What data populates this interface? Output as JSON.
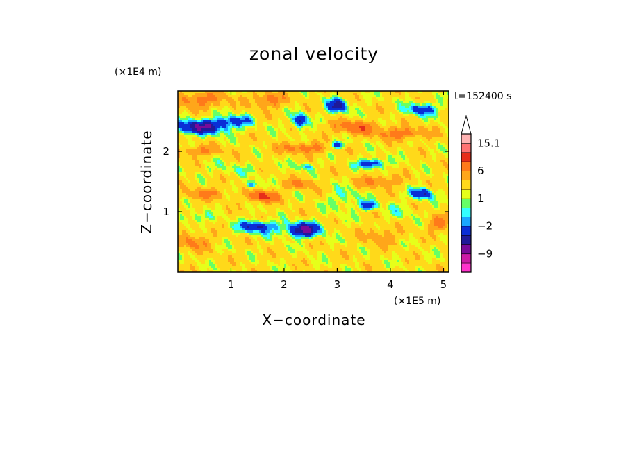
{
  "chart_data": {
    "type": "heatmap",
    "title": "zonal velocity",
    "xlabel": "X−coordinate",
    "ylabel": "Z−coordinate",
    "x_unit": "(×1E5 m)",
    "y_unit": "(×1E4 m)",
    "time_label": "t=152400 s",
    "xlim": [
      0,
      5.1
    ],
    "ylim": [
      0,
      3.0
    ],
    "x_ticks": [
      1,
      2,
      3,
      4,
      5
    ],
    "x_tick_labels": [
      "1",
      "2",
      "3",
      "4",
      "5"
    ],
    "y_ticks": [
      1,
      2
    ],
    "y_tick_labels": [
      "1",
      "2"
    ],
    "grid": false,
    "colorbar": {
      "levels": [
        -15,
        -12,
        -9,
        -6,
        -4,
        -2,
        -1,
        0,
        1,
        2,
        4,
        6,
        9,
        12,
        15.1
      ],
      "colors": [
        "#ff33cc",
        "#cc1aa6",
        "#7a0a99",
        "#1f1a99",
        "#0a2ed6",
        "#1aa6ff",
        "#33ffff",
        "#66ff66",
        "#e6ff1a",
        "#ffd91a",
        "#ffa61a",
        "#ff7a1a",
        "#e62e1a",
        "#ff7373",
        "#ffb3b3"
      ],
      "labels": [
        {
          "value": 15.1,
          "text": "15.1"
        },
        {
          "value": 6,
          "text": "6"
        },
        {
          "value": 1,
          "text": "1"
        },
        {
          "value": -2,
          "text": "−2"
        },
        {
          "value": -9,
          "text": "−9"
        }
      ],
      "extend": "max",
      "extend_color": "#ffffff"
    },
    "field": {
      "description_units": "velocity (m/s), sampled features",
      "background": 2.5,
      "features": [
        {
          "x": 0.4,
          "z": 2.4,
          "sx": 0.55,
          "sz": 0.12,
          "amp": -8
        },
        {
          "x": 1.05,
          "z": 2.5,
          "sx": 0.35,
          "sz": 0.1,
          "amp": -5
        },
        {
          "x": 1.5,
          "z": 0.75,
          "sx": 0.35,
          "sz": 0.1,
          "amp": -7
        },
        {
          "x": 2.35,
          "z": 0.7,
          "sx": 0.32,
          "sz": 0.12,
          "amp": -9
        },
        {
          "x": 2.3,
          "z": 2.5,
          "sx": 0.13,
          "sz": 0.12,
          "amp": -8
        },
        {
          "x": 3.0,
          "z": 2.75,
          "sx": 0.2,
          "sz": 0.12,
          "amp": -7
        },
        {
          "x": 4.6,
          "z": 2.7,
          "sx": 0.3,
          "sz": 0.1,
          "amp": -6
        },
        {
          "x": 3.0,
          "z": 2.1,
          "sx": 0.15,
          "sz": 0.06,
          "amp": -7
        },
        {
          "x": 3.65,
          "z": 1.8,
          "sx": 0.25,
          "sz": 0.08,
          "amp": -7
        },
        {
          "x": 4.6,
          "z": 1.3,
          "sx": 0.2,
          "sz": 0.1,
          "amp": -7
        },
        {
          "x": 3.6,
          "z": 1.1,
          "sx": 0.15,
          "sz": 0.07,
          "amp": -6
        },
        {
          "x": 1.4,
          "z": 1.45,
          "sx": 0.1,
          "sz": 0.06,
          "amp": -6
        },
        {
          "x": 2.4,
          "z": 1.75,
          "sx": 0.18,
          "sz": 0.06,
          "amp": -4
        },
        {
          "x": 0.4,
          "z": 2.85,
          "sx": 0.5,
          "sz": 0.12,
          "amp": 5
        },
        {
          "x": 1.7,
          "z": 2.85,
          "sx": 0.3,
          "sz": 0.12,
          "amp": 5
        },
        {
          "x": 3.3,
          "z": 2.4,
          "sx": 0.4,
          "sz": 0.1,
          "amp": 6
        },
        {
          "x": 2.4,
          "z": 2.05,
          "sx": 0.5,
          "sz": 0.09,
          "amp": 5
        },
        {
          "x": 4.2,
          "z": 2.3,
          "sx": 0.5,
          "sz": 0.1,
          "amp": 5
        },
        {
          "x": 1.6,
          "z": 1.25,
          "sx": 0.25,
          "sz": 0.1,
          "amp": 8
        },
        {
          "x": 0.5,
          "z": 1.3,
          "sx": 0.4,
          "sz": 0.1,
          "amp": 4
        },
        {
          "x": 3.8,
          "z": 1.5,
          "sx": 0.4,
          "sz": 0.1,
          "amp": 4
        },
        {
          "x": 0.4,
          "z": 2.0,
          "sx": 0.45,
          "sz": 0.08,
          "amp": 4
        },
        {
          "x": 2.3,
          "z": 1.45,
          "sx": 0.3,
          "sz": 0.08,
          "amp": 4
        },
        {
          "x": 4.9,
          "z": 0.8,
          "sx": 0.2,
          "sz": 0.12,
          "amp": 5
        },
        {
          "x": 0.3,
          "z": 0.5,
          "sx": 0.3,
          "sz": 0.15,
          "amp": 4
        },
        {
          "x": 3.8,
          "z": 0.6,
          "sx": 0.35,
          "sz": 0.15,
          "amp": 3
        },
        {
          "x": 3.15,
          "z": 1.2,
          "sx": 0.3,
          "sz": 0.2,
          "amp": -2.5
        },
        {
          "x": 0.3,
          "z": 0.9,
          "sx": 0.3,
          "sz": 0.1,
          "amp": -2.5
        },
        {
          "x": 4.2,
          "z": 1.0,
          "sx": 0.3,
          "sz": 0.15,
          "amp": -1.5
        },
        {
          "x": 1.0,
          "z": 1.7,
          "sx": 0.5,
          "sz": 0.12,
          "amp": -1.5
        }
      ]
    }
  }
}
